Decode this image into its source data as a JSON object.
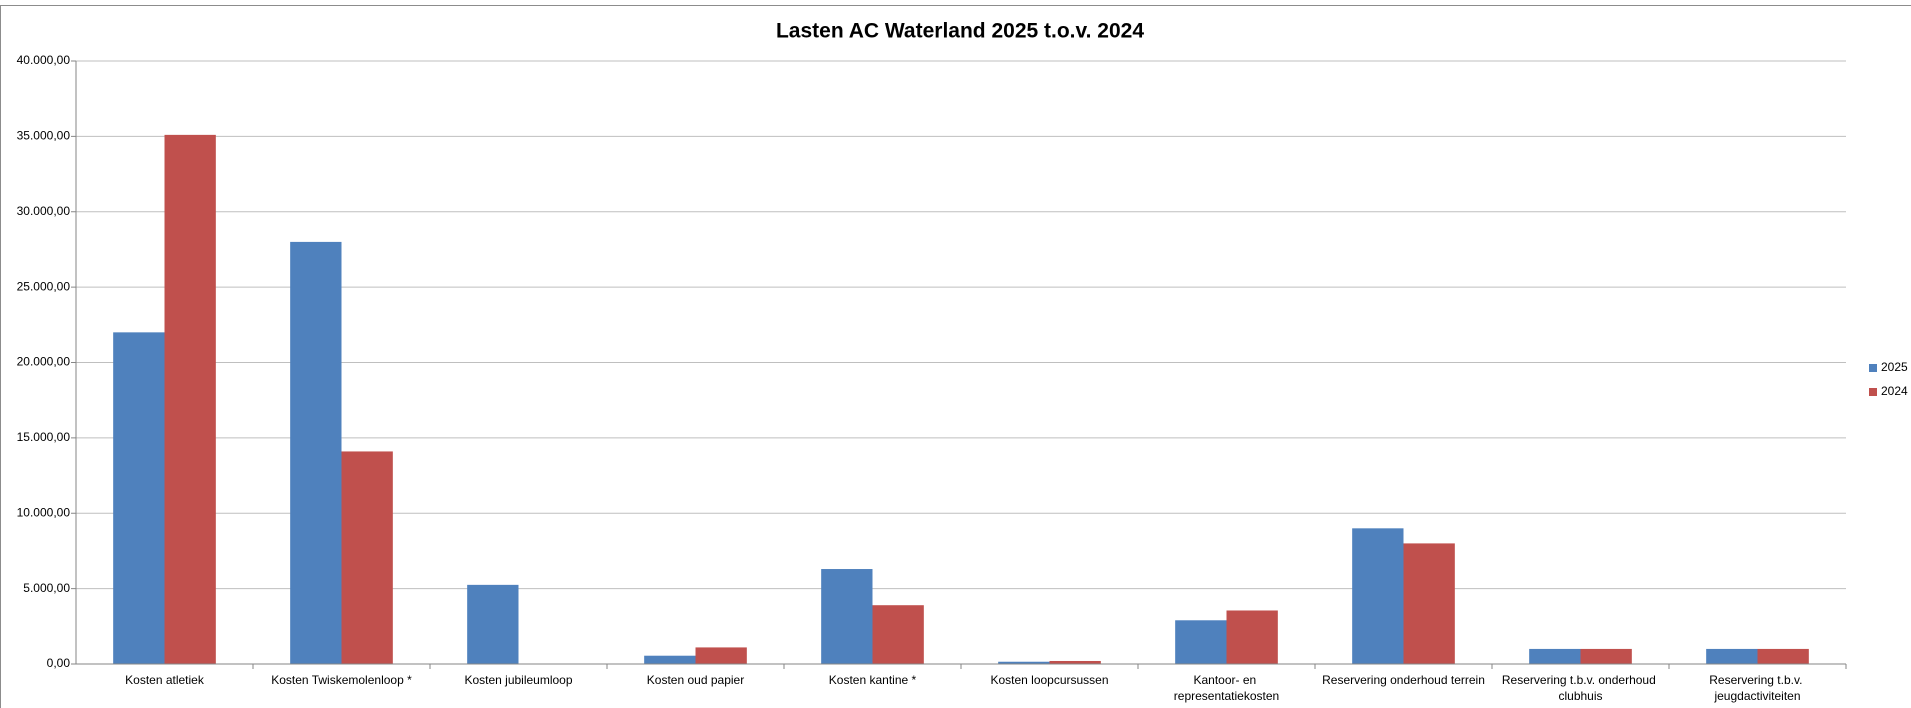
{
  "chart_data": {
    "type": "bar",
    "title": "Lasten AC Waterland 2025 t.o.v. 2024",
    "categories": [
      "Kosten atletiek",
      "Kosten Twiskemolenloop *",
      "Kosten jubileumloop",
      "Kosten oud papier",
      "Kosten kantine *",
      "Kosten loopcursussen",
      "Kantoor- en representatiekosten",
      "Reservering onderhoud terrein",
      "Reservering t.b.v. onderhoud clubhuis",
      "Reservering t.b.v. jeugdactiviteiten"
    ],
    "series": [
      {
        "name": "2025",
        "color": "#4f81bd",
        "values": [
          22000,
          28000,
          5250,
          550,
          6300,
          150,
          2900,
          9000,
          1000,
          1000
        ]
      },
      {
        "name": "2024",
        "color": "#c0504d",
        "values": [
          35100,
          14100,
          0,
          1100,
          3900,
          200,
          3550,
          8000,
          1000,
          1000
        ]
      }
    ],
    "ylim": [
      0,
      40000
    ],
    "yticks": [
      {
        "value": 0,
        "label": "0,00"
      },
      {
        "value": 5000,
        "label": "5.000,00"
      },
      {
        "value": 10000,
        "label": "10.000,00"
      },
      {
        "value": 15000,
        "label": "15.000,00"
      },
      {
        "value": 20000,
        "label": "20.000,00"
      },
      {
        "value": 25000,
        "label": "25.000,00"
      },
      {
        "value": 30000,
        "label": "30.000,00"
      },
      {
        "value": 35000,
        "label": "35.000,00"
      },
      {
        "value": 40000,
        "label": "40.000,00"
      }
    ],
    "grid": true,
    "legend": "right"
  }
}
